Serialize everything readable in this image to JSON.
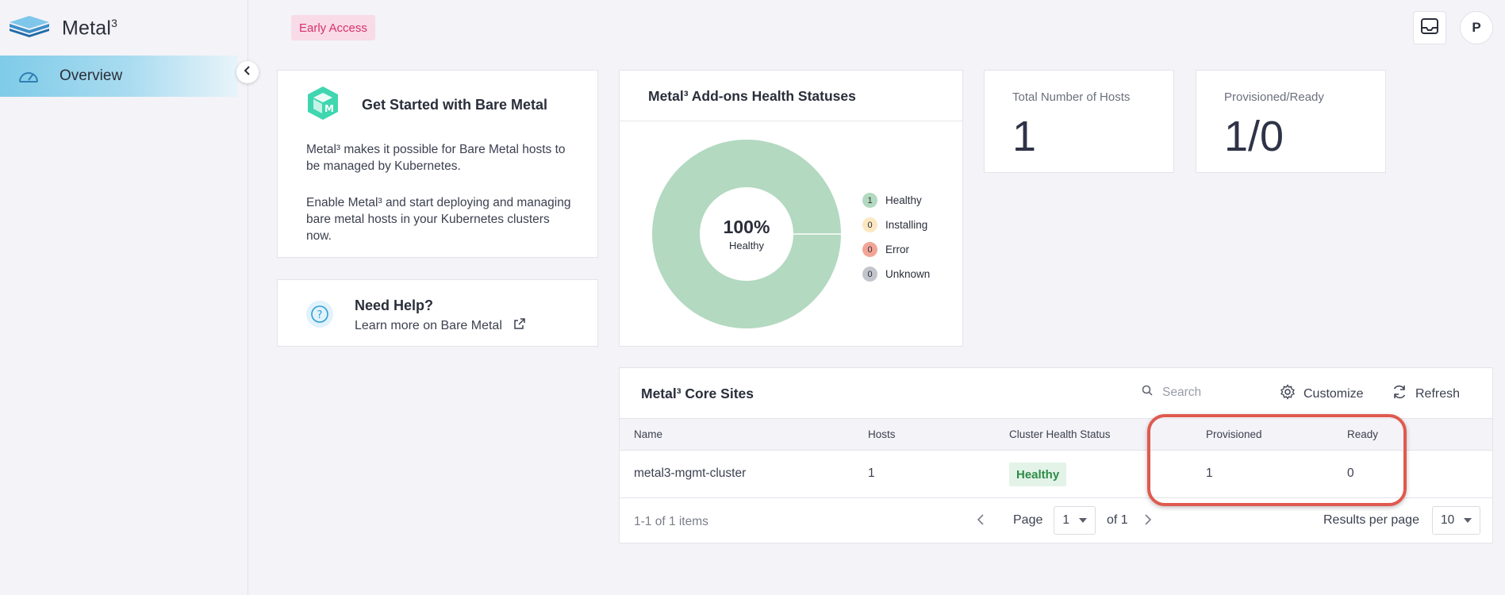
{
  "app": {
    "brand": "Metal",
    "brand_sup": "3"
  },
  "sidebar": {
    "items": [
      {
        "label": "Overview",
        "icon": "dashboard-gauge-icon",
        "active": true
      }
    ]
  },
  "header": {
    "badge": "Early Access",
    "avatar_initial": "P"
  },
  "get_started": {
    "title": "Get Started with Bare Metal",
    "p1": "Metal³ makes it possible for Bare Metal hosts to be managed by Kubernetes.",
    "p2": "Enable Metal³ and start deploying and managing bare metal hosts in your Kubernetes clusters now."
  },
  "help": {
    "title": "Need Help?",
    "link": "Learn more on Bare Metal"
  },
  "health": {
    "title": "Metal³ Add-ons Health Statuses",
    "center_pct": "100%",
    "center_label": "Healthy",
    "legend": [
      {
        "count": "1",
        "label": "Healthy",
        "color": "#b3d9c0"
      },
      {
        "count": "0",
        "label": "Installing",
        "color": "#fbe8c2"
      },
      {
        "count": "0",
        "label": "Error",
        "color": "#f2a597"
      },
      {
        "count": "0",
        "label": "Unknown",
        "color": "#c3c5cc"
      }
    ]
  },
  "stats": {
    "total_label": "Total Number of Hosts",
    "total_value": "1",
    "prov_label": "Provisioned/Ready",
    "prov_value": "1/0"
  },
  "sites": {
    "title": "Metal³ Core Sites",
    "search_placeholder": "Search",
    "customize": "Customize",
    "refresh": "Refresh",
    "columns": [
      "Name",
      "Hosts",
      "Cluster Health Status",
      "Provisioned",
      "Ready"
    ],
    "rows": [
      {
        "name": "metal3-mgmt-cluster",
        "hosts": "1",
        "status": "Healthy",
        "provisioned": "1",
        "ready": "0"
      }
    ],
    "footer_count": "1-1 of 1 items",
    "page_label": "Page",
    "page_value": "1",
    "page_of": "of 1",
    "per_page_label": "Results per page",
    "per_page_value": "10"
  },
  "colors": {
    "accent_pink": "#d6326d",
    "healthy_green": "#2e8b47",
    "donut_healthy": "#b3d9c0",
    "annotation_red": "#df5a4f"
  }
}
